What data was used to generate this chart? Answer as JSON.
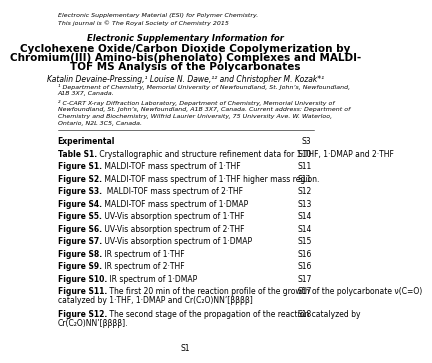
{
  "header_line1": "Electronic Supplementary Material (ESI) for Polymer Chemistry.",
  "header_line2": "This journal is © The Royal Society of Chemistry 2015",
  "esi_label": "Electronic Supplementary Information for",
  "title_line1": "Cyclohexene Oxide/Carbon Dioxide Copolymerization by",
  "title_line2": "Chromium(III) Amino-bis(phenolato) Complexes and MALDI-",
  "title_line3": "TOF MS Analysis of the Polycarbonates",
  "authors": "Katalin Devaine-Pressing,¹ Louise N. Dawe,¹² and Christopher M. Kozak*¹",
  "affil1_line1": "¹ Department of Chemistry, Memorial University of Newfoundland, St. John’s, Newfoundland,",
  "affil1_line2": "A1B 3X7, Canada.",
  "affil2_line1": "² C-CART X-ray Diffraction Laboratory, Department of Chemistry, Memorial University of",
  "affil2_line2": "Newfoundland, St. John’s, Newfoundland, A1B 3X7, Canada. Current address: Department of",
  "affil2_line3": "Chemistry and Biochemistry, Wilfrid Laurier University, 75 University Ave. W. Waterloo,",
  "affil2_line4": "Ontario, N2L 3C5, Canada.",
  "toc": [
    {
      "bold": "Experimental",
      "rest": "",
      "page": "S3"
    },
    {
      "bold": "Table S1.",
      "rest": " Crystallographic and structure refinement data for 1·THF, 1·DMAP and 2·THF",
      "page": "S10"
    },
    {
      "bold": "Figure S1.",
      "rest": " MALDI-TOF mass spectrum of 1·THF",
      "page": "S11"
    },
    {
      "bold": "Figure S2.",
      "rest": " MALDI-TOF mass spectrum of 1·THF higher mass region.",
      "page": "S11"
    },
    {
      "bold": "Figure S3.",
      "rest": "  MALDI-TOF mass spectrum of 2·THF",
      "page": "S12"
    },
    {
      "bold": "Figure S4.",
      "rest": " MALDI-TOF mass spectrum of 1·DMAP",
      "page": "S13"
    },
    {
      "bold": "Figure S5.",
      "rest": " UV-Vis absorption spectrum of 1·THF",
      "page": "S14"
    },
    {
      "bold": "Figure S6.",
      "rest": " UV-Vis absorption spectrum of 2·THF",
      "page": "S14"
    },
    {
      "bold": "Figure S7.",
      "rest": " UV-Vis absorption spectrum of 1·DMAP",
      "page": "S15"
    },
    {
      "bold": "Figure S8.",
      "rest": " IR spectrum of 1·THF",
      "page": "S16"
    },
    {
      "bold": "Figure S9.",
      "rest": " IR spectrum of 2·THF",
      "page": "S16"
    },
    {
      "bold": "Figure S10.",
      "rest": " IR spectrum of 1·DMAP",
      "page": "S17"
    },
    {
      "bold": "Figure S11.",
      "rest": " The first 20 min of the reaction profile of the growth of the polycarbonate ν(C=O)",
      "rest2": "catalyzed by 1·THF, 1·DMAP and Cr(C₂O)NN’[ββββ]",
      "page": "S17"
    },
    {
      "bold": "Figure S12.",
      "rest": " The second stage of the propagation of the reaction catalyzed by",
      "rest2": "Cr(C₂O)NN’[ββββ].",
      "page": "S18"
    }
  ],
  "footer": "S1",
  "bg_color": "#ffffff",
  "text_color": "#000000"
}
